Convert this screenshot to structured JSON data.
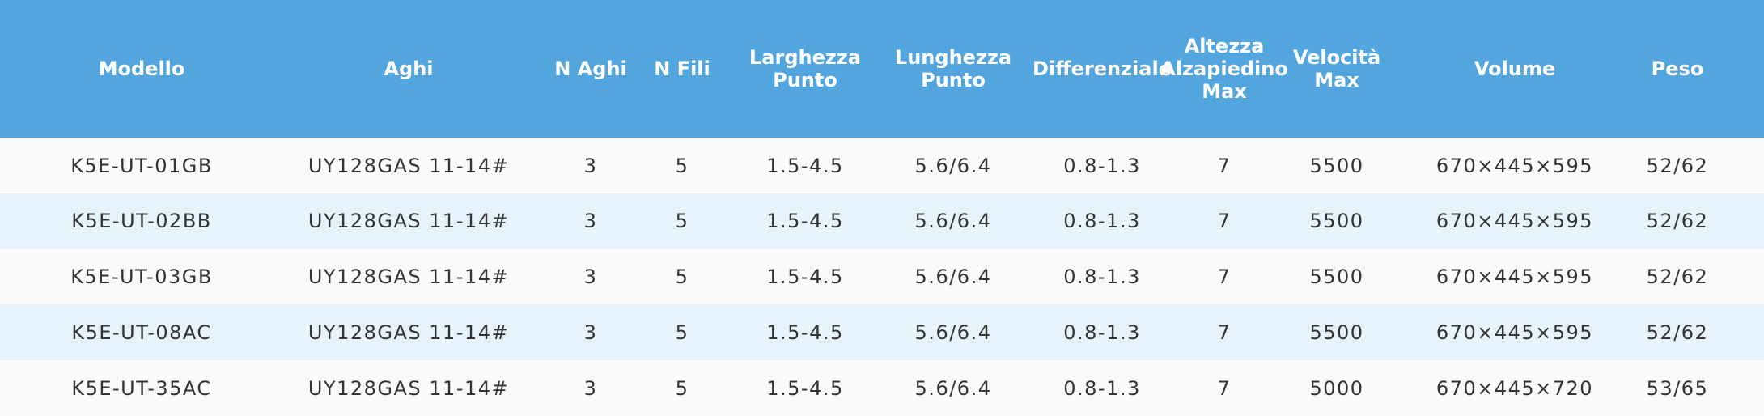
{
  "table": {
    "header": [
      [
        "Modello"
      ],
      [
        "Aghi"
      ],
      [
        "N Aghi"
      ],
      [
        "N Fili"
      ],
      [
        "Larghezza",
        "Punto"
      ],
      [
        "Lunghezza",
        "Punto"
      ],
      [
        "Differenziale"
      ],
      [
        "Altezza",
        "Alzapiedino",
        "Max"
      ],
      [
        "Velocità",
        "Max"
      ],
      [
        "Volume"
      ],
      [
        "Peso"
      ]
    ],
    "rows": [
      [
        "K5E-UT-01GB",
        "UY128GAS 11-14#",
        "3",
        "5",
        "1.5-4.5",
        "5.6/6.4",
        "0.8-1.3",
        "7",
        "5500",
        "670×445×595",
        "52/62"
      ],
      [
        "K5E-UT-02BB",
        "UY128GAS 11-14#",
        "3",
        "5",
        "1.5-4.5",
        "5.6/6.4",
        "0.8-1.3",
        "7",
        "5500",
        "670×445×595",
        "52/62"
      ],
      [
        "K5E-UT-03GB",
        "UY128GAS 11-14#",
        "3",
        "5",
        "1.5-4.5",
        "5.6/6.4",
        "0.8-1.3",
        "7",
        "5500",
        "670×445×595",
        "52/62"
      ],
      [
        "K5E-UT-08AC",
        "UY128GAS 11-14#",
        "3",
        "5",
        "1.5-4.5",
        "5.6/6.4",
        "0.8-1.3",
        "7",
        "5500",
        "670×445×595",
        "52/62"
      ],
      [
        "K5E-UT-35AC",
        "UY128GAS 11-14#",
        "3",
        "5",
        "1.5-4.5",
        "5.6/6.4",
        "0.8-1.3",
        "7",
        "5000",
        "670×445×720",
        "53/65"
      ]
    ]
  }
}
